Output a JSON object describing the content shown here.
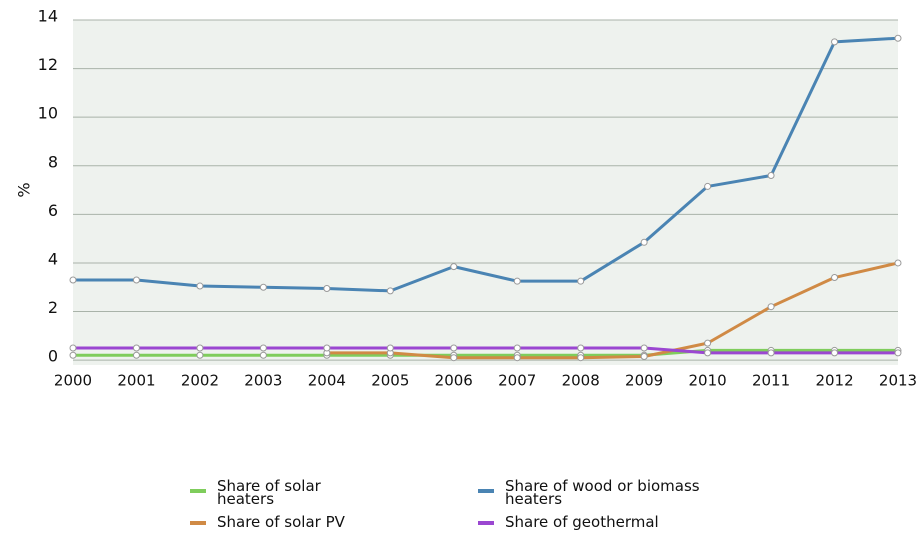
{
  "chart_data": {
    "type": "line",
    "ylabel": "%",
    "x": [
      "2000",
      "2001",
      "2002",
      "2003",
      "2004",
      "2005",
      "2006",
      "2007",
      "2008",
      "2009",
      "2010",
      "2011",
      "2012",
      "2013"
    ],
    "series": [
      {
        "name": "Share of solar heaters",
        "color": "#7fcd5c",
        "values": [
          0.2,
          0.2,
          0.2,
          0.2,
          0.2,
          0.2,
          0.2,
          0.2,
          0.2,
          0.2,
          0.4,
          0.4,
          0.4,
          0.4
        ]
      },
      {
        "name": "Share of wood or biomass heaters",
        "color": "#4a84b3",
        "values": [
          3.3,
          3.3,
          3.05,
          3.0,
          2.95,
          2.85,
          3.85,
          3.25,
          3.25,
          4.85,
          7.15,
          7.6,
          13.1,
          13.25
        ]
      },
      {
        "name": "Share of solar PV",
        "color": "#d08a45",
        "values": [
          null,
          null,
          null,
          null,
          0.3,
          0.3,
          0.1,
          0.1,
          0.1,
          0.15,
          0.7,
          2.2,
          3.4,
          4.0
        ]
      },
      {
        "name": "Share of geothermal",
        "color": "#9b47d1",
        "values": [
          0.5,
          0.5,
          0.5,
          0.5,
          0.5,
          0.5,
          0.5,
          0.5,
          0.5,
          0.5,
          0.3,
          0.3,
          0.3,
          0.3
        ]
      }
    ],
    "ylim": [
      -0.2,
      14
    ],
    "yticks": [
      0,
      2,
      4,
      6,
      8,
      10,
      12,
      14
    ],
    "grid": true,
    "legend": "bottom"
  }
}
